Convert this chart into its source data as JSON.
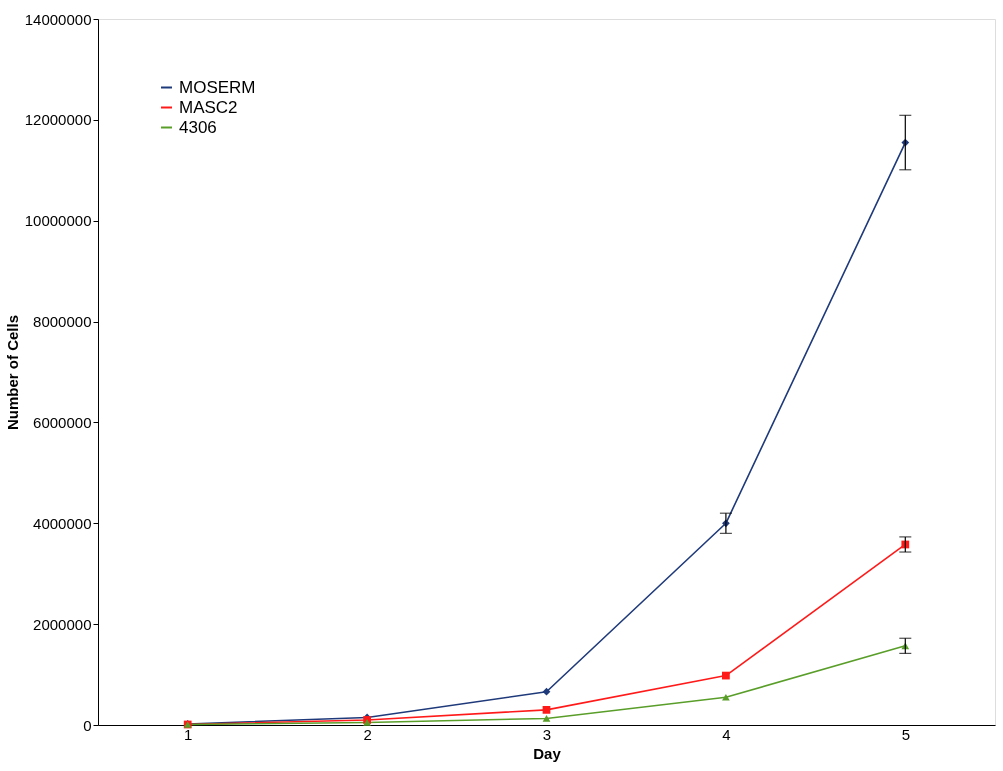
{
  "chart_data": {
    "type": "line",
    "xlabel": "Day",
    "ylabel": "Number of Cells",
    "categories": [
      "1",
      "2",
      "3",
      "4",
      "5"
    ],
    "ylim": [
      0,
      14000000
    ],
    "yticks": [
      0,
      2000000,
      4000000,
      6000000,
      8000000,
      10000000,
      12000000,
      14000000
    ],
    "grid": false,
    "legend": "top left",
    "series": [
      {
        "name": "MOSERM",
        "color": "#1f3a7a",
        "marker": "diamond",
        "values": [
          20000,
          150000,
          660000,
          4000000,
          11550000
        ],
        "errors": [
          null,
          null,
          null,
          200000,
          540000
        ]
      },
      {
        "name": "MASC2",
        "color": "#ff1a1a",
        "marker": "square",
        "values": [
          10000,
          100000,
          300000,
          980000,
          3580000
        ],
        "errors": [
          null,
          null,
          null,
          null,
          150000
        ]
      },
      {
        "name": "4306",
        "color": "#5a9e2a",
        "marker": "triangle",
        "values": [
          10000,
          50000,
          130000,
          550000,
          1570000
        ],
        "errors": [
          null,
          null,
          null,
          null,
          150000
        ]
      }
    ]
  }
}
